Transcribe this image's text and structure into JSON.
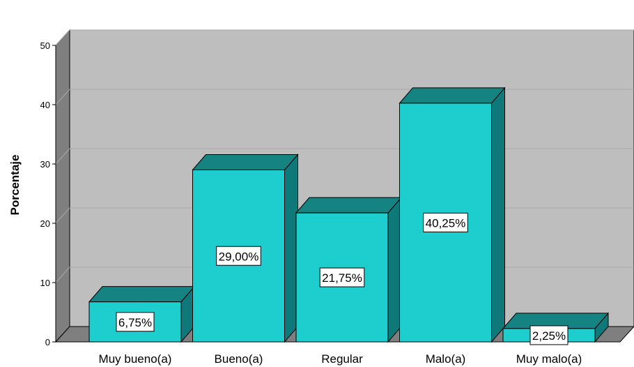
{
  "chart_data": {
    "type": "bar",
    "title": "",
    "xlabel": "",
    "ylabel": "Porcentaje",
    "ylim": [
      0,
      50
    ],
    "yticks": [
      0,
      10,
      20,
      30,
      40,
      50
    ],
    "grid": true,
    "categories": [
      "Muy bueno(a)",
      "Bueno(a)",
      "Regular",
      "Malo(a)",
      "Muy malo(a)"
    ],
    "values": [
      6.75,
      29.0,
      21.75,
      40.25,
      2.25
    ],
    "data_labels": [
      "6,75%",
      "29,00%",
      "21,75%",
      "40,25%",
      "2,25%"
    ],
    "style": "3d",
    "colors": {
      "bar_front": "#1ECDCD",
      "bar_top": "#168383",
      "bar_side": "#0F7878",
      "back_wall": "#BEBEBE",
      "side_wall": "#7F7F7F",
      "floor": "#7F7F7F",
      "grid": "#A8A8A8"
    }
  }
}
